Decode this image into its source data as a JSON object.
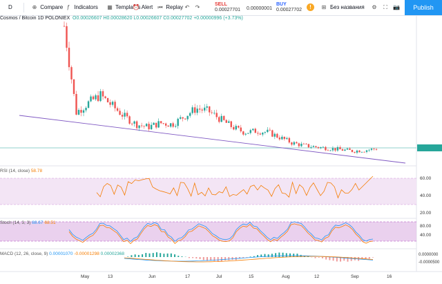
{
  "toolbar": {
    "interval": "D",
    "compare": "Compare",
    "indicators": "Indicators",
    "templates": "Templates",
    "alert": "Alert",
    "replay": "Replay",
    "sell_label": "SELL",
    "sell_value": "0.00027701",
    "mid_value": "0.00000001",
    "buy_label": "BUY",
    "buy_value": "0.00027702",
    "layout_name": "Без названия",
    "publish": "Publish"
  },
  "legend": {
    "symbol": "Cosmos / Bitcoin 1D POLONIEX",
    "ohlc": "O0.00026607 H0.00028620 L0.00026607 C0.00027702 +0.00000996 (+3.73%)"
  },
  "rsi": {
    "label": "RSI (14, close)",
    "value": "58.78",
    "ticks": [
      "60.00",
      "40.00",
      "20.00"
    ]
  },
  "stoch": {
    "label": "Stoch (14, 3, 3)",
    "k": "88.67",
    "d": "68.51",
    "ticks": [
      "80.00",
      "40.00"
    ]
  },
  "macd": {
    "label": "MACD (12, 26, close, 9)",
    "v1": "0.00001070",
    "v2": "-0.00001298",
    "v3": "0.00002368",
    "ticks": [
      "0.0000000",
      "-0.0000500"
    ]
  },
  "xaxis": [
    "May",
    "13",
    "Jun",
    "17",
    "Jul",
    "15",
    "Aug",
    "12",
    "Sep",
    "16"
  ],
  "colors": {
    "up": "#26a69a",
    "down": "#ef5350",
    "trend": "#7e57c2",
    "rsi": "#f57c00",
    "band": "#e1bee7"
  },
  "chart_data": {
    "type": "candlestick",
    "title": "Cosmos / Bitcoin 1D POLONIEX",
    "close_series": [
      0.0012,
      0.00055,
      0.00062,
      0.00068,
      0.0006,
      0.00052,
      0.00046,
      0.00044,
      0.00047,
      0.00046,
      0.00052,
      0.00058,
      0.00056,
      0.0005,
      0.00044,
      0.0004,
      0.00041,
      0.0004,
      0.00036,
      0.00032,
      0.0003,
      0.00029,
      0.00028,
      0.00027,
      0.00026,
      0.000265,
      0.00027702
    ]
  }
}
